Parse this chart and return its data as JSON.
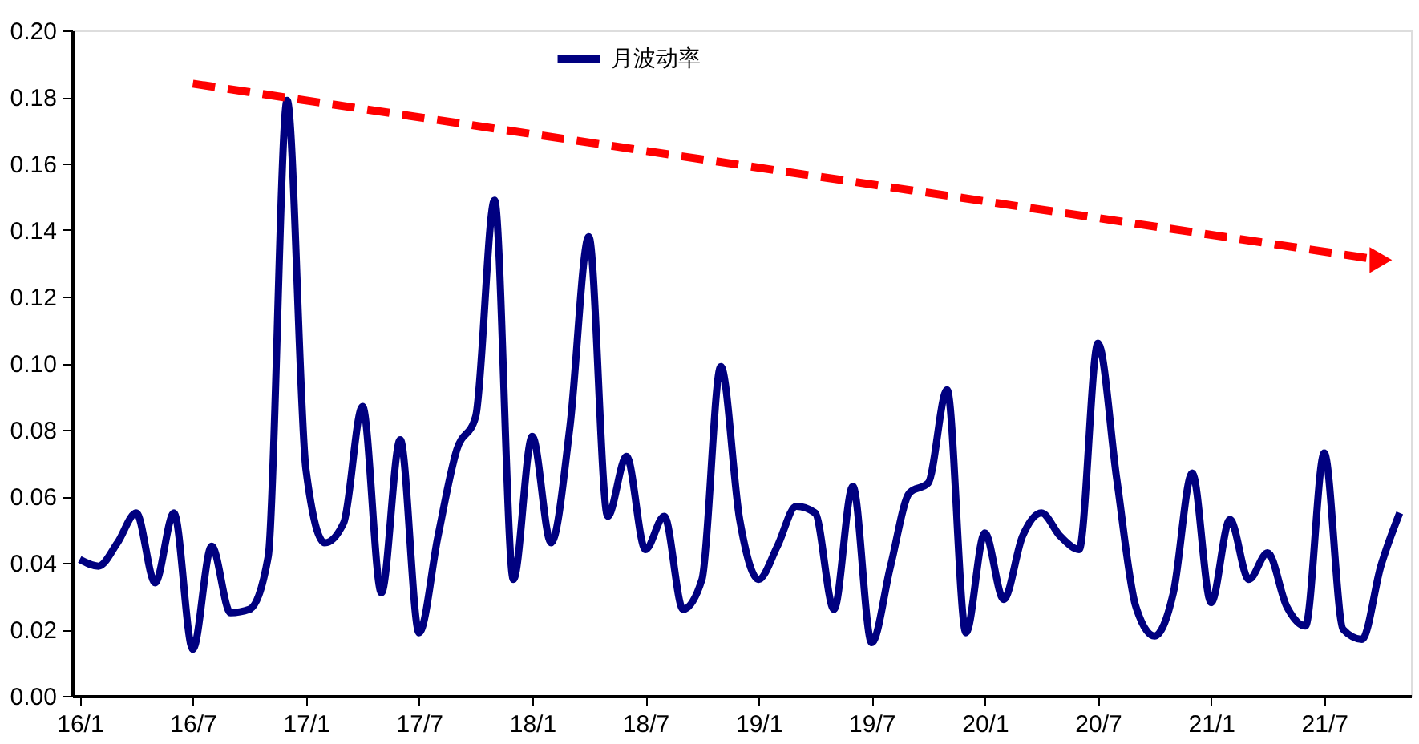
{
  "chart_data": {
    "type": "line",
    "categories": [
      "16/1",
      null,
      null,
      null,
      null,
      null,
      "16/7",
      null,
      null,
      null,
      null,
      null,
      "17/1",
      null,
      null,
      null,
      null,
      null,
      "17/7",
      null,
      null,
      null,
      null,
      null,
      "18/1",
      null,
      null,
      null,
      null,
      null,
      "18/7",
      null,
      null,
      null,
      null,
      null,
      "19/1",
      null,
      null,
      null,
      null,
      null,
      "19/7",
      null,
      null,
      null,
      null,
      null,
      "20/1",
      null,
      null,
      null,
      null,
      null,
      "20/7",
      null,
      null,
      null,
      null,
      null,
      "21/1",
      null,
      null,
      null,
      null,
      null,
      "21/7",
      null,
      null,
      null,
      null
    ],
    "series": [
      {
        "name": "月波动率",
        "color": "#000080",
        "values": [
          0.041,
          0.039,
          0.046,
          0.055,
          0.034,
          0.055,
          0.014,
          0.045,
          0.025,
          0.026,
          0.042,
          0.179,
          0.068,
          0.046,
          0.052,
          0.087,
          0.031,
          0.077,
          0.019,
          0.048,
          0.074,
          0.084,
          0.149,
          0.035,
          0.078,
          0.046,
          0.081,
          0.138,
          0.054,
          0.072,
          0.044,
          0.054,
          0.026,
          0.035,
          0.099,
          0.053,
          0.035,
          0.045,
          0.057,
          0.055,
          0.026,
          0.063,
          0.016,
          0.039,
          0.061,
          0.064,
          0.092,
          0.019,
          0.049,
          0.029,
          0.048,
          0.055,
          0.048,
          0.044,
          0.106,
          0.065,
          0.027,
          0.018,
          0.031,
          0.067,
          0.028,
          0.053,
          0.035,
          0.043,
          0.027,
          0.021,
          0.073,
          0.02,
          0.017,
          0.039,
          0.055
        ]
      },
      {
        "type": "line",
        "color": "#ff0000",
        "line_style": "dashed",
        "marker": "triangle",
        "values": [
          null,
          null,
          null,
          null,
          null,
          null,
          0.184,
          null,
          null,
          null,
          null,
          null,
          null,
          null,
          null,
          null,
          null,
          null,
          null,
          null,
          null,
          null,
          null,
          null,
          null,
          null,
          null,
          null,
          null,
          null,
          null,
          null,
          null,
          null,
          null,
          null,
          null,
          null,
          null,
          null,
          null,
          null,
          null,
          null,
          null,
          null,
          null,
          null,
          null,
          null,
          null,
          null,
          null,
          null,
          null,
          null,
          null,
          null,
          null,
          null,
          null,
          null,
          null,
          null,
          null,
          null,
          null,
          null,
          null,
          0.131,
          null
        ]
      }
    ],
    "ylim": [
      0,
      0.2
    ],
    "yticks": [
      {
        "value": 0,
        "label": "0.00"
      },
      {
        "value": 0.02,
        "label": "0.02"
      },
      {
        "value": 0.04,
        "label": "0.04"
      },
      {
        "value": 0.06,
        "label": "0.06"
      },
      {
        "value": 0.08,
        "label": "0.08"
      },
      {
        "value": 0.1,
        "label": "0.10"
      },
      {
        "value": 0.12,
        "label": "0.12"
      },
      {
        "value": 0.14,
        "label": "0.14"
      },
      {
        "value": 0.16,
        "label": "0.16"
      },
      {
        "value": 0.18,
        "label": "0.18"
      },
      {
        "value": 0.2,
        "label": "0.20"
      }
    ],
    "grid": false,
    "legend": "top",
    "marker": "none",
    "line_style": "solid"
  }
}
